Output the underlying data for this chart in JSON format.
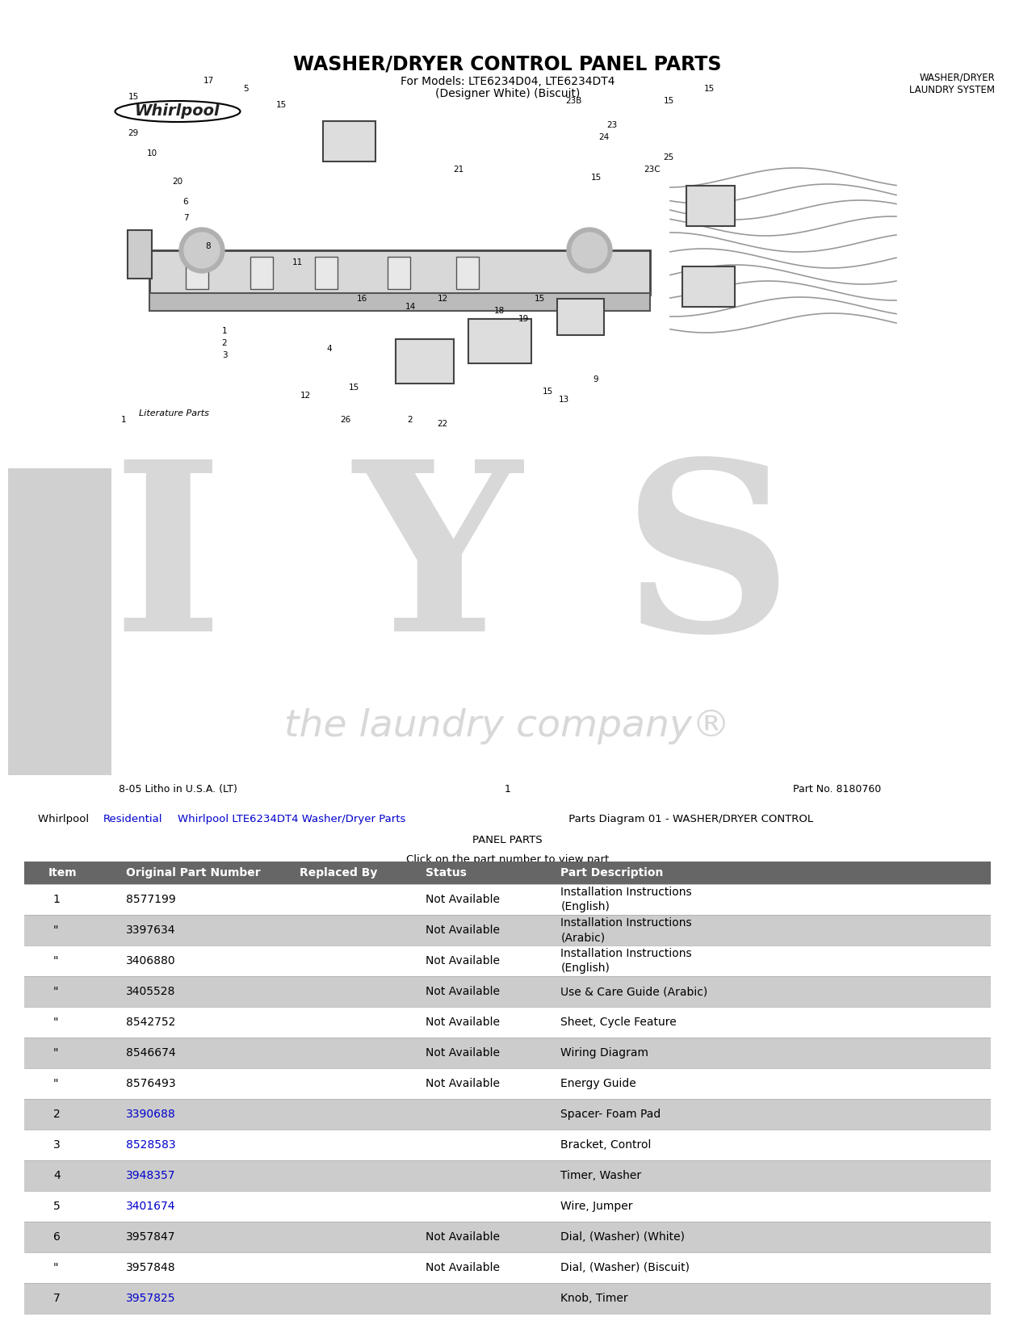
{
  "page_title": "Whirlpool LTE6234DT4 01 - WASHER/DRYER CONTROL PANEL PARTS",
  "diagram_title": "WASHER/DRYER CONTROL PANEL PARTS",
  "diagram_subtitle1": "For Models: LTE6234D04, LTE6234DT4",
  "diagram_subtitle2": "(Designer White) (Biscuit)",
  "diagram_label_right": "WASHER/DRYER\nLAUNDRY SYSTEM",
  "bottom_text_left": "8-05 Litho in U.S.A. (LT)",
  "bottom_text_center": "1",
  "bottom_text_right": "Part No. 8180760",
  "breadcrumb_line2": "PANEL PARTS",
  "breadcrumb_line3": "Click on the part number to view part",
  "table_headers": [
    "Item",
    "Original Part Number",
    "Replaced By",
    "Status",
    "Part Description"
  ],
  "table_header_bg": "#666666",
  "table_header_color": "#ffffff",
  "rows": [
    {
      "item": "1",
      "part": "8577199",
      "replaced": "",
      "status": "Not Available",
      "desc": "Installation Instructions\n(English)",
      "link": false,
      "shade": false
    },
    {
      "item": "\"",
      "part": "3397634",
      "replaced": "",
      "status": "Not Available",
      "desc": "Installation Instructions\n(Arabic)",
      "link": false,
      "shade": true
    },
    {
      "item": "\"",
      "part": "3406880",
      "replaced": "",
      "status": "Not Available",
      "desc": "Installation Instructions\n(English)",
      "link": false,
      "shade": false
    },
    {
      "item": "\"",
      "part": "3405528",
      "replaced": "",
      "status": "Not Available",
      "desc": "Use & Care Guide (Arabic)",
      "link": false,
      "shade": true
    },
    {
      "item": "\"",
      "part": "8542752",
      "replaced": "",
      "status": "Not Available",
      "desc": "Sheet, Cycle Feature",
      "link": false,
      "shade": false
    },
    {
      "item": "\"",
      "part": "8546674",
      "replaced": "",
      "status": "Not Available",
      "desc": "Wiring Diagram",
      "link": false,
      "shade": true
    },
    {
      "item": "\"",
      "part": "8576493",
      "replaced": "",
      "status": "Not Available",
      "desc": "Energy Guide",
      "link": false,
      "shade": false
    },
    {
      "item": "2",
      "part": "3390688",
      "replaced": "",
      "status": "",
      "desc": "Spacer- Foam Pad",
      "link": true,
      "shade": true
    },
    {
      "item": "3",
      "part": "8528583",
      "replaced": "",
      "status": "",
      "desc": "Bracket, Control",
      "link": true,
      "shade": false
    },
    {
      "item": "4",
      "part": "3948357",
      "replaced": "",
      "status": "",
      "desc": "Timer, Washer",
      "link": true,
      "shade": true
    },
    {
      "item": "5",
      "part": "3401674",
      "replaced": "",
      "status": "",
      "desc": "Wire, Jumper",
      "link": true,
      "shade": false
    },
    {
      "item": "6",
      "part": "3957847",
      "replaced": "",
      "status": "Not Available",
      "desc": "Dial, (Washer) (White)",
      "link": false,
      "shade": true
    },
    {
      "item": "\"",
      "part": "3957848",
      "replaced": "",
      "status": "Not Available",
      "desc": "Dial, (Washer) (Biscuit)",
      "link": false,
      "shade": false
    },
    {
      "item": "7",
      "part": "3957825",
      "replaced": "",
      "status": "",
      "desc": "Knob, Timer",
      "link": true,
      "shade": true
    }
  ],
  "watermark_color": "#d8d8d8",
  "link_color": "#0000cc"
}
